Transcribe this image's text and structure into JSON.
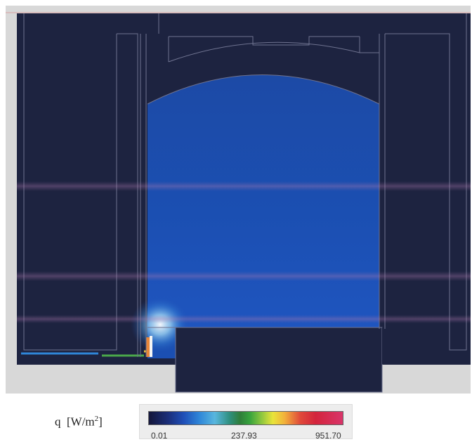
{
  "legend": {
    "quantity_symbol": "q",
    "unit_base": "[W/m",
    "unit_exp": "2",
    "unit_close": "]",
    "ticks": [
      "0.01",
      "237.93",
      "951.70"
    ]
  },
  "colors": {
    "field_dark": "#1d2340",
    "field_blue": "#1b4fb2",
    "hot_spot": "#f0f0f0",
    "outline": "#6f7390",
    "frame_gray": "#d8d8d8"
  }
}
